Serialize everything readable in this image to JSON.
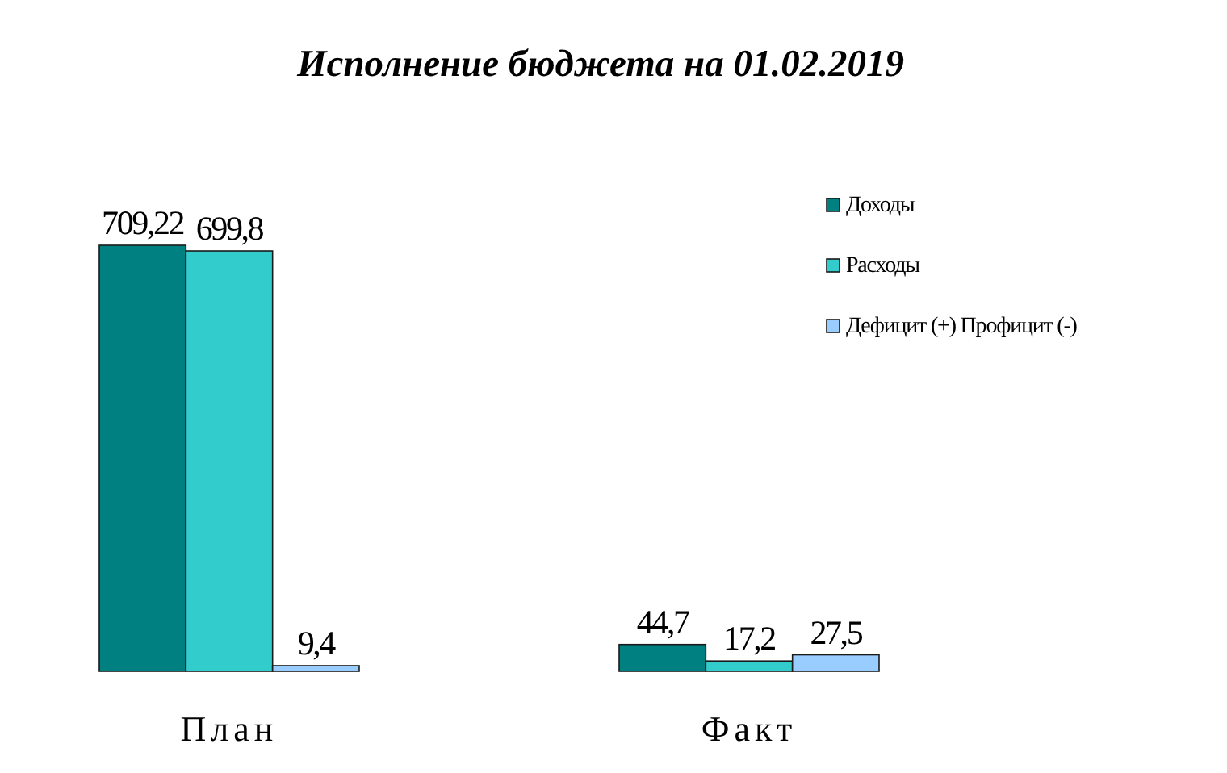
{
  "chart_data": {
    "type": "bar",
    "title": "Исполнение бюджета на 01.02.2019",
    "categories": [
      "План",
      "Факт"
    ],
    "series": [
      {
        "name": "Доходы",
        "color": "#008080",
        "values": [
          709.22,
          44.7
        ],
        "value_labels": [
          "709,22",
          "44,7"
        ]
      },
      {
        "name": "Расходы",
        "color": "#33cccc",
        "values": [
          699.8,
          17.2
        ],
        "value_labels": [
          "699,8",
          "17,2"
        ]
      },
      {
        "name": "Дефицит (+) Профицит (-)",
        "color": "#99ccff",
        "values": [
          9.4,
          27.5
        ],
        "value_labels": [
          "9,4",
          "27,5"
        ]
      }
    ],
    "legend": "right"
  }
}
